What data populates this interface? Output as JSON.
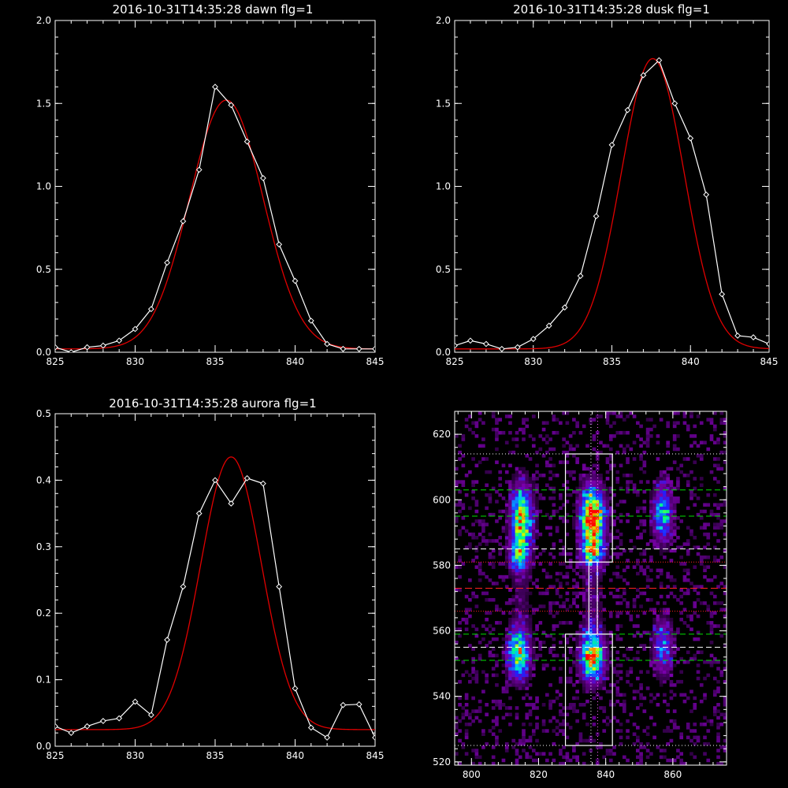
{
  "chart_data": [
    {
      "type": "line",
      "title": "2016-10-31T14:35:28 dawn flg=1",
      "xlim": [
        825,
        845
      ],
      "ylim": [
        0,
        2.0
      ],
      "xticks": [
        "825",
        "830",
        "835",
        "840",
        "845"
      ],
      "yticks": [
        "0.0",
        "0.5",
        "1.0",
        "1.5",
        "2.0"
      ],
      "series": [
        {
          "role": "measured",
          "color": "#ffffff",
          "markers": "diamond",
          "x": [
            825,
            826,
            827,
            828,
            829,
            830,
            831,
            832,
            833,
            834,
            835,
            836,
            837,
            838,
            839,
            840,
            841,
            842,
            843,
            844,
            845
          ],
          "y": [
            0.03,
            0.0,
            0.03,
            0.04,
            0.07,
            0.14,
            0.26,
            0.54,
            0.79,
            1.1,
            1.6,
            1.49,
            1.27,
            1.05,
            0.65,
            0.43,
            0.19,
            0.05,
            0.02,
            0.02,
            0.02
          ]
        },
        {
          "role": "fit",
          "color": "#e00000",
          "model": "gaussian",
          "amplitude": 1.5,
          "center": 835.7,
          "sigma": 2.3,
          "offset": 0.02
        }
      ]
    },
    {
      "type": "line",
      "title": "2016-10-31T14:35:28 dusk flg=1",
      "xlim": [
        825,
        845
      ],
      "ylim": [
        0,
        2.0
      ],
      "xticks": [
        "825",
        "830",
        "835",
        "840",
        "845"
      ],
      "yticks": [
        "0.0",
        "0.5",
        "1.0",
        "1.5",
        "2.0"
      ],
      "series": [
        {
          "role": "measured",
          "color": "#ffffff",
          "markers": "diamond",
          "x": [
            825,
            826,
            827,
            828,
            829,
            830,
            831,
            832,
            833,
            834,
            835,
            836,
            837,
            838,
            839,
            840,
            841,
            842,
            843,
            844,
            845
          ],
          "y": [
            0.04,
            0.07,
            0.05,
            0.02,
            0.03,
            0.08,
            0.16,
            0.27,
            0.46,
            0.82,
            1.25,
            1.46,
            1.67,
            1.76,
            1.5,
            1.29,
            0.95,
            0.35,
            0.1,
            0.09,
            0.05
          ]
        },
        {
          "role": "fit",
          "color": "#e00000",
          "model": "gaussian",
          "amplitude": 1.75,
          "center": 837.6,
          "sigma": 2.0,
          "offset": 0.02
        }
      ]
    },
    {
      "type": "line",
      "title": "2016-10-31T14:35:28 aurora flg=1",
      "xlim": [
        825,
        845
      ],
      "ylim": [
        0,
        0.5
      ],
      "xticks": [
        "825",
        "830",
        "835",
        "840",
        "845"
      ],
      "yticks": [
        "0.0",
        "0.1",
        "0.2",
        "0.3",
        "0.4",
        "0.5"
      ],
      "series": [
        {
          "role": "measured",
          "color": "#ffffff",
          "markers": "diamond",
          "x": [
            825,
            826,
            827,
            828,
            829,
            830,
            831,
            832,
            833,
            834,
            835,
            836,
            837,
            838,
            839,
            840,
            841,
            842,
            843,
            844,
            845
          ],
          "y": [
            0.03,
            0.02,
            0.03,
            0.038,
            0.042,
            0.067,
            0.047,
            0.16,
            0.24,
            0.35,
            0.4,
            0.365,
            0.403,
            0.395,
            0.24,
            0.087,
            0.028,
            0.013,
            0.062,
            0.063,
            0.013
          ]
        },
        {
          "role": "fit",
          "color": "#e00000",
          "model": "gaussian",
          "amplitude": 0.41,
          "center": 836.0,
          "sigma": 1.9,
          "offset": 0.025
        }
      ]
    },
    {
      "type": "heatmap",
      "title": "",
      "xlim": [
        795,
        876
      ],
      "ylim": [
        519,
        627
      ],
      "xticks": [
        "800",
        "820",
        "840",
        "860"
      ],
      "yticks": [
        "520",
        "540",
        "560",
        "580",
        "600",
        "620"
      ],
      "colormap": [
        "#000000",
        "#4a006a",
        "#7a00aa",
        "#2020ff",
        "#00c0ff",
        "#00ff80",
        "#c8ff00",
        "#ff8000",
        "#ff0000"
      ],
      "blobs": [
        {
          "x": 815,
          "y": 594,
          "sx": 2.2,
          "sy": 7,
          "peak": 0.72
        },
        {
          "x": 814,
          "y": 583,
          "sx": 1.8,
          "sy": 3,
          "peak": 0.45
        },
        {
          "x": 836,
          "y": 595,
          "sx": 2.4,
          "sy": 6,
          "peak": 1.0
        },
        {
          "x": 836,
          "y": 584,
          "sx": 2.2,
          "sy": 3,
          "peak": 0.55
        },
        {
          "x": 857,
          "y": 596,
          "sx": 2.0,
          "sy": 6,
          "peak": 0.5
        },
        {
          "x": 814,
          "y": 553,
          "sx": 2.2,
          "sy": 5,
          "peak": 0.65
        },
        {
          "x": 836,
          "y": 552,
          "sx": 2.4,
          "sy": 5,
          "peak": 0.78
        },
        {
          "x": 857,
          "y": 555,
          "sx": 2.0,
          "sy": 6,
          "peak": 0.38
        },
        {
          "x": 836,
          "y": 570,
          "sx": 2.5,
          "sy": 12,
          "peak": 0.12
        },
        {
          "x": 815,
          "y": 570,
          "sx": 2.5,
          "sy": 12,
          "peak": 0.1
        }
      ],
      "overlays": {
        "white_dotted_horizontal": [
          614,
          525
        ],
        "green_dashed_horizontal": [
          603,
          595,
          559,
          551
        ],
        "white_dashed_horizontal": [
          585,
          555
        ],
        "red_dotted_horizontal": [
          581,
          566
        ],
        "red_dashed_horizontal": [
          573
        ],
        "vertical_dotted": [
          {
            "x": 835.6,
            "color": "#ffffff"
          },
          {
            "x": 837.6,
            "color": "#ff66ff"
          }
        ],
        "boxes": [
          {
            "x0": 828,
            "x1": 842,
            "y0": 581,
            "y1": 614
          },
          {
            "x0": 835,
            "x1": 837.5,
            "y0": 559,
            "y1": 581
          },
          {
            "x0": 828,
            "x1": 842,
            "y0": 525,
            "y1": 559
          }
        ]
      }
    }
  ]
}
